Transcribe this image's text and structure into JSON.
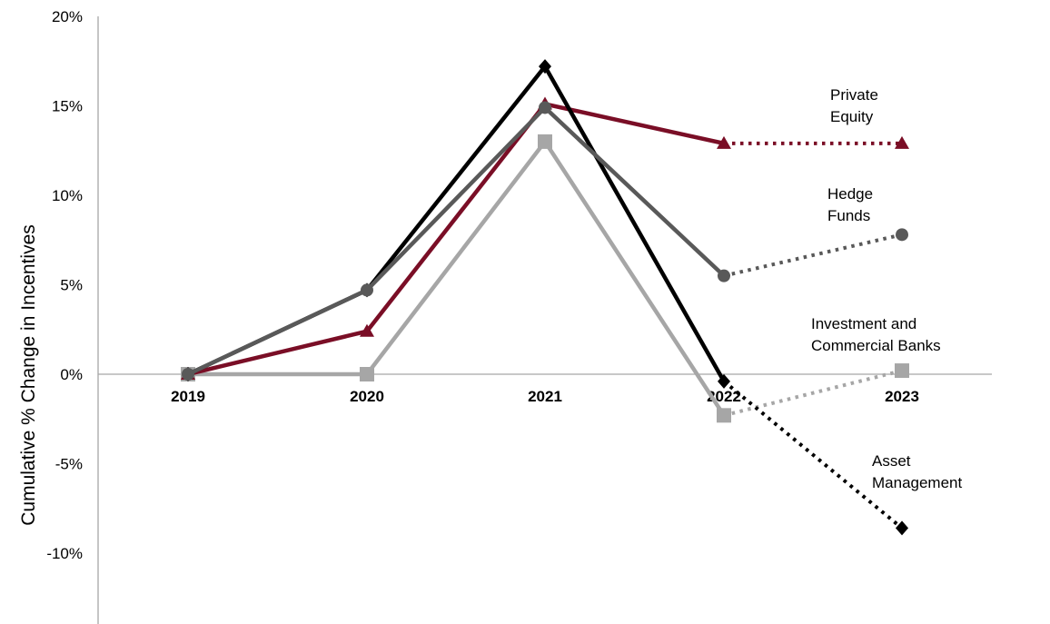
{
  "chart_data": {
    "type": "line",
    "ylabel": "Cumulative % Change in Incentives",
    "ylim": [
      -14,
      20
    ],
    "yticks": [
      "20%",
      "15%",
      "10%",
      "5%",
      "0%",
      "-5%",
      "-10%"
    ],
    "ytick_values": [
      20,
      15,
      10,
      5,
      0,
      -5,
      -10
    ],
    "categories": [
      "2019",
      "2020",
      "2021",
      "2022",
      "2023"
    ],
    "grid": false,
    "legend": "none",
    "projection_style": "dotted after 2022",
    "series": [
      {
        "name": "Private Equity",
        "label_lines": [
          "Private",
          "Equity"
        ],
        "color": "#7A0E26",
        "marker": "triangle",
        "values": [
          0,
          2.4,
          15.1,
          12.9,
          12.9
        ]
      },
      {
        "name": "Hedge Funds",
        "label_lines": [
          "Hedge",
          "Funds"
        ],
        "color": "#595959",
        "marker": "circle",
        "values": [
          0,
          4.7,
          14.9,
          5.5,
          7.8
        ]
      },
      {
        "name": "Investment and Commercial Banks",
        "label_lines": [
          "Investment and",
          "Commercial Banks"
        ],
        "color": "#A6A6A6",
        "marker": "square",
        "values": [
          0,
          0,
          13.0,
          -2.3,
          0.2
        ]
      },
      {
        "name": "Asset Management",
        "label_lines": [
          "Asset",
          "Management"
        ],
        "color": "#000000",
        "marker": "diamond",
        "values": [
          0,
          4.7,
          17.2,
          -0.4,
          -8.6
        ]
      }
    ]
  }
}
